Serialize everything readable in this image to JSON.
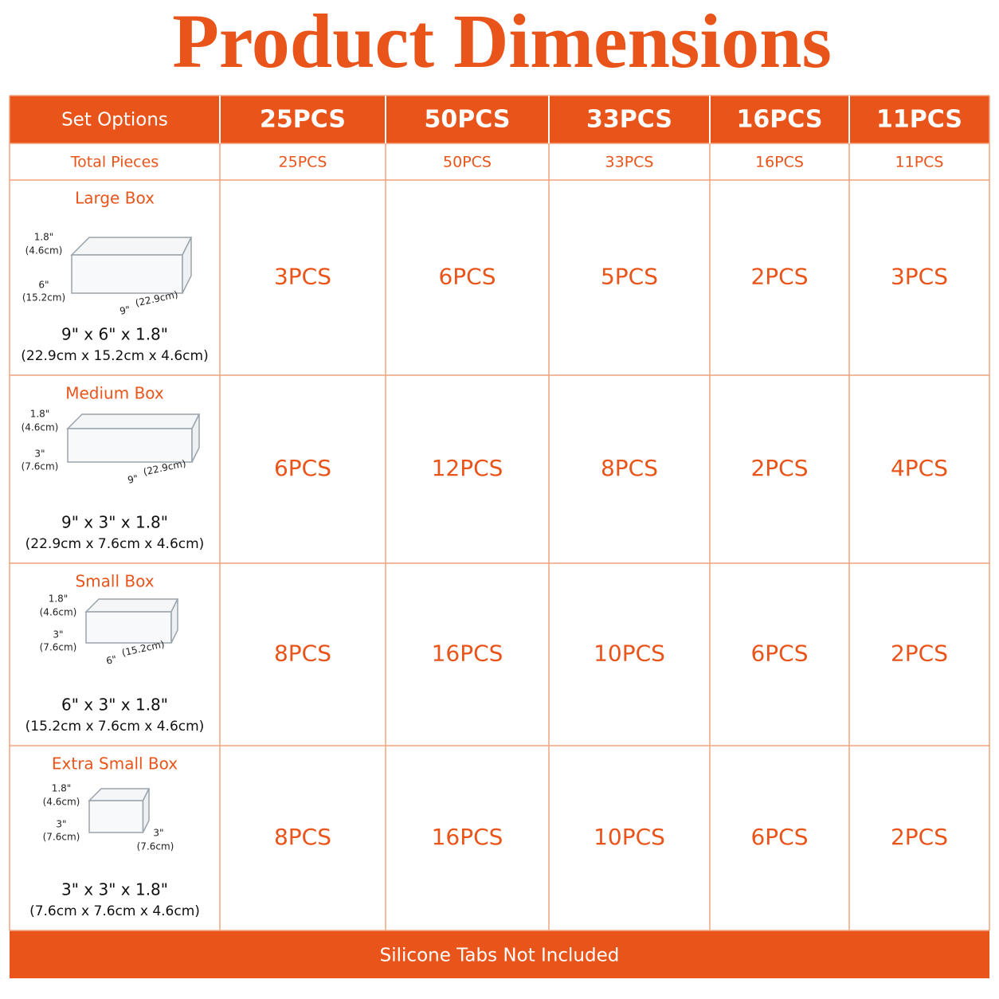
{
  "title": "Product Dimensions",
  "table": {
    "header": [
      "Set Options",
      "25PCS",
      "50PCS",
      "33PCS",
      "16PCS",
      "11PCS"
    ],
    "total": [
      "Total Pieces",
      "25PCS",
      "50PCS",
      "33PCS",
      "16PCS",
      "11PCS"
    ],
    "rows": [
      {
        "name": "Large Box",
        "height": "1.8\"",
        "height_cm": "(4.6cm)",
        "depth": "6\"",
        "depth_cm": "(15.2cm)",
        "width": "9\"",
        "width_cm": "(22.9cm)",
        "size": "9\" x 6\" x 1.8\"",
        "size_cm": "(22.9cm x 15.2cm x 4.6cm)",
        "counts": [
          "3PCS",
          "6PCS",
          "5PCS",
          "2PCS",
          "3PCS"
        ]
      },
      {
        "name": "Medium Box",
        "height": "1.8\"",
        "height_cm": "(4.6cm)",
        "depth": "3\"",
        "depth_cm": "(7.6cm)",
        "width": "9\"",
        "width_cm": "(22.9cm)",
        "size": "9\" x 3\" x 1.8\"",
        "size_cm": "(22.9cm x 7.6cm x 4.6cm)",
        "counts": [
          "6PCS",
          "12PCS",
          "8PCS",
          "2PCS",
          "4PCS"
        ]
      },
      {
        "name": "Small Box",
        "height": "1.8\"",
        "height_cm": "(4.6cm)",
        "depth": "3\"",
        "depth_cm": "(7.6cm)",
        "width": "6\"",
        "width_cm": "(15.2cm)",
        "size": "6\" x 3\" x 1.8\"",
        "size_cm": "(15.2cm x 7.6cm x 4.6cm)",
        "counts": [
          "8PCS",
          "16PCS",
          "10PCS",
          "6PCS",
          "2PCS"
        ]
      },
      {
        "name": "Extra Small Box",
        "height": "1.8\"",
        "height_cm": "(4.6cm)",
        "depth": "3\"",
        "depth_cm": "(7.6cm)",
        "width": "3\"",
        "width_cm": "(7.6cm)",
        "size": "3\" x 3\" x 1.8\"",
        "size_cm": "(7.6cm x 7.6cm x 4.6cm)",
        "counts": [
          "8PCS",
          "16PCS",
          "10PCS",
          "6PCS",
          "2PCS"
        ]
      }
    ]
  },
  "footer": "Silicone Tabs Not Included"
}
